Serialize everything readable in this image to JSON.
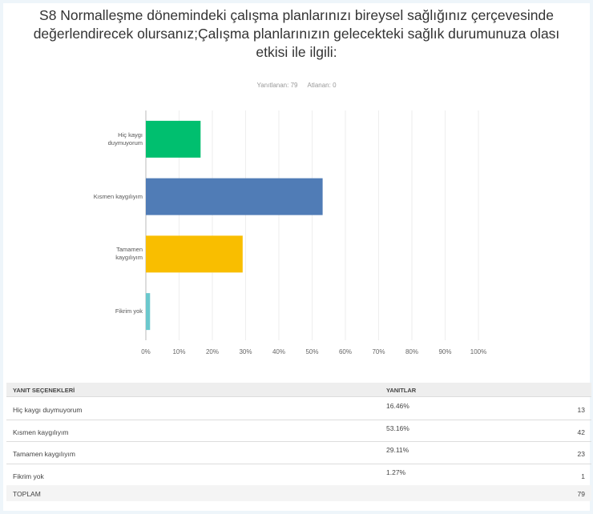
{
  "chart_data": {
    "type": "bar",
    "orientation": "horizontal",
    "title": "S8 Normalleşme dönemindeki çalışma planlarınızı bireysel sağlığınız çerçevesinde değerlendirecek olursanız;Çalışma planlarınızın gelecekteki sağlık durumunuza olası etkisi ile ilgili:",
    "subtitle": [
      "Yanıtlanan: 79",
      "Atlanan: 0"
    ],
    "categories": [
      "Hiç kaygı duymuyorum",
      "Kısmen kaygılıyım",
      "Tamamen kaygılıyım",
      "Fikrim yok"
    ],
    "values": [
      16.46,
      53.16,
      29.11,
      1.27
    ],
    "value_labels": [
      "16.46%",
      "53.16%",
      "29.11%",
      "1.27%"
    ],
    "colors": [
      "#00bf6f",
      "#507cb6",
      "#f9be00",
      "#6bc8cd"
    ],
    "xlim": [
      0,
      100
    ],
    "xticks": [
      {
        "value": 0,
        "label": "0%"
      },
      {
        "value": 10,
        "label": "10%"
      },
      {
        "value": 20,
        "label": "20%"
      },
      {
        "value": 30,
        "label": "30%"
      },
      {
        "value": 40,
        "label": "40%"
      },
      {
        "value": 50,
        "label": "50%"
      },
      {
        "value": 60,
        "label": "60%"
      },
      {
        "value": 70,
        "label": "70%"
      },
      {
        "value": 80,
        "label": "80%"
      },
      {
        "value": 90,
        "label": "90%"
      },
      {
        "value": 100,
        "label": "100%"
      }
    ],
    "grid": true
  },
  "table": {
    "headers": [
      "YANIT SEÇENEKLERİ",
      "YANITLAR"
    ],
    "counts": [
      13,
      42,
      23,
      1
    ],
    "total_label": "TOPLAM",
    "total": 79
  }
}
